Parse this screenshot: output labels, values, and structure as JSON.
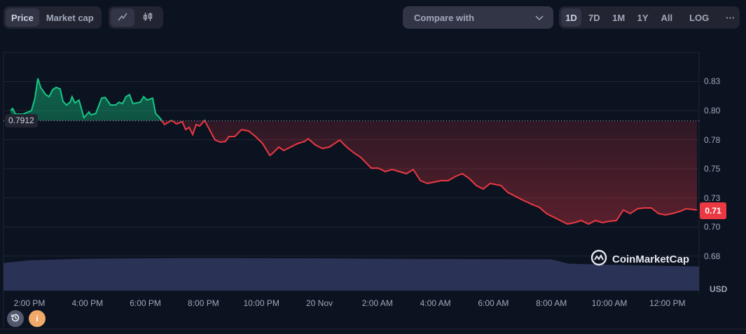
{
  "toolbar": {
    "type_tabs": [
      {
        "label": "Price",
        "active": true
      },
      {
        "label": "Market cap",
        "active": false
      }
    ],
    "chart_styles": [
      {
        "icon": "line-chart-icon",
        "active": true
      },
      {
        "icon": "candlestick-icon",
        "active": false
      }
    ],
    "compare_label": "Compare with",
    "ranges": [
      {
        "label": "1D",
        "active": true
      },
      {
        "label": "7D"
      },
      {
        "label": "1M"
      },
      {
        "label": "1Y"
      },
      {
        "label": "All"
      }
    ],
    "log_label": "LOG",
    "more_label": "···"
  },
  "chart": {
    "y_ticks": [
      {
        "v": 0.825,
        "label": "0.83"
      },
      {
        "v": 0.8,
        "label": "0.80"
      },
      {
        "v": 0.775,
        "label": "0.78"
      },
      {
        "v": 0.75,
        "label": "0.75"
      },
      {
        "v": 0.725,
        "label": "0.73"
      },
      {
        "v": 0.7,
        "label": "0.70"
      },
      {
        "v": 0.675,
        "label": "0.68"
      }
    ],
    "x_ticks": [
      {
        "h": 0,
        "label": "2:00 PM"
      },
      {
        "h": 2,
        "label": "4:00 PM"
      },
      {
        "h": 4,
        "label": "6:00 PM"
      },
      {
        "h": 6,
        "label": "8:00 PM"
      },
      {
        "h": 8,
        "label": "10:00 PM"
      },
      {
        "h": 10,
        "label": "20 Nov"
      },
      {
        "h": 12,
        "label": "2:00 AM"
      },
      {
        "h": 14,
        "label": "4:00 AM"
      },
      {
        "h": 16,
        "label": "6:00 AM"
      },
      {
        "h": 18,
        "label": "8:00 AM"
      },
      {
        "h": 20,
        "label": "10:00 AM"
      },
      {
        "h": 22,
        "label": "12:00 PM"
      }
    ],
    "baseline": 0.7912,
    "baseline_label": "0.7912",
    "current_label": "0.71",
    "currency": "USD",
    "watermark": "CoinMarketCap",
    "colors": {
      "up": "#16c784",
      "down": "#ea3943",
      "volume": "#2a3356"
    },
    "series": [
      [
        -0.65,
        0.8
      ],
      [
        -0.58,
        0.8018
      ],
      [
        -0.48,
        0.797
      ],
      [
        -0.22,
        0.797
      ],
      [
        -0.05,
        0.7988
      ],
      [
        0.07,
        0.8
      ],
      [
        0.19,
        0.8108
      ],
      [
        0.29,
        0.8277
      ],
      [
        0.39,
        0.8199
      ],
      [
        0.56,
        0.8138
      ],
      [
        0.68,
        0.812
      ],
      [
        0.8,
        0.818
      ],
      [
        0.92,
        0.8199
      ],
      [
        1.06,
        0.8187
      ],
      [
        1.16,
        0.8078
      ],
      [
        1.28,
        0.8048
      ],
      [
        1.4,
        0.8072
      ],
      [
        1.47,
        0.812
      ],
      [
        1.57,
        0.8066
      ],
      [
        1.71,
        0.809
      ],
      [
        1.88,
        0.794
      ],
      [
        2.05,
        0.7988
      ],
      [
        2.13,
        0.7964
      ],
      [
        2.29,
        0.7976
      ],
      [
        2.49,
        0.8108
      ],
      [
        2.61,
        0.8114
      ],
      [
        2.8,
        0.8048
      ],
      [
        2.97,
        0.8048
      ],
      [
        3.09,
        0.8072
      ],
      [
        3.21,
        0.806
      ],
      [
        3.33,
        0.812
      ],
      [
        3.45,
        0.8138
      ],
      [
        3.57,
        0.806
      ],
      [
        3.82,
        0.8072
      ],
      [
        3.94,
        0.812
      ],
      [
        4.06,
        0.809
      ],
      [
        4.25,
        0.8108
      ],
      [
        4.35,
        0.7976
      ],
      [
        4.49,
        0.794
      ],
      [
        4.66,
        0.788
      ],
      [
        4.78,
        0.7898
      ],
      [
        4.9,
        0.7916
      ],
      [
        5.07,
        0.7886
      ],
      [
        5.27,
        0.7904
      ],
      [
        5.39,
        0.7837
      ],
      [
        5.51,
        0.7856
      ],
      [
        5.63,
        0.7795
      ],
      [
        5.75,
        0.788
      ],
      [
        5.87,
        0.7868
      ],
      [
        6.04,
        0.7916
      ],
      [
        6.18,
        0.785
      ],
      [
        6.4,
        0.7747
      ],
      [
        6.59,
        0.7729
      ],
      [
        6.76,
        0.7735
      ],
      [
        6.88,
        0.7777
      ],
      [
        7.08,
        0.7777
      ],
      [
        7.32,
        0.7837
      ],
      [
        7.56,
        0.7825
      ],
      [
        7.8,
        0.7777
      ],
      [
        8.04,
        0.7717
      ],
      [
        8.29,
        0.7615
      ],
      [
        8.41,
        0.7639
      ],
      [
        8.6,
        0.7687
      ],
      [
        8.77,
        0.7657
      ],
      [
        9.01,
        0.7687
      ],
      [
        9.25,
        0.7717
      ],
      [
        9.49,
        0.7735
      ],
      [
        9.61,
        0.7759
      ],
      [
        9.86,
        0.7705
      ],
      [
        10.1,
        0.7675
      ],
      [
        10.34,
        0.7687
      ],
      [
        10.7,
        0.7747
      ],
      [
        10.94,
        0.7687
      ],
      [
        11.18,
        0.7639
      ],
      [
        11.43,
        0.7597
      ],
      [
        11.67,
        0.7536
      ],
      [
        11.79,
        0.7506
      ],
      [
        12.03,
        0.7506
      ],
      [
        12.27,
        0.7476
      ],
      [
        12.51,
        0.7494
      ],
      [
        12.75,
        0.7476
      ],
      [
        13.0,
        0.7458
      ],
      [
        13.24,
        0.7494
      ],
      [
        13.48,
        0.7398
      ],
      [
        13.72,
        0.7374
      ],
      [
        13.96,
        0.7386
      ],
      [
        14.2,
        0.7398
      ],
      [
        14.44,
        0.7398
      ],
      [
        14.69,
        0.7434
      ],
      [
        14.93,
        0.7458
      ],
      [
        15.17,
        0.7416
      ],
      [
        15.41,
        0.7356
      ],
      [
        15.65,
        0.7326
      ],
      [
        15.89,
        0.7374
      ],
      [
        16.26,
        0.7356
      ],
      [
        16.5,
        0.7296
      ],
      [
        16.74,
        0.7266
      ],
      [
        16.98,
        0.7235
      ],
      [
        17.34,
        0.7193
      ],
      [
        17.58,
        0.7169
      ],
      [
        17.83,
        0.7115
      ],
      [
        18.07,
        0.7085
      ],
      [
        18.31,
        0.7055
      ],
      [
        18.55,
        0.7025
      ],
      [
        18.79,
        0.7037
      ],
      [
        19.03,
        0.7055
      ],
      [
        19.28,
        0.7025
      ],
      [
        19.52,
        0.7055
      ],
      [
        19.76,
        0.7037
      ],
      [
        20.0,
        0.7049
      ],
      [
        20.24,
        0.7055
      ],
      [
        20.48,
        0.7145
      ],
      [
        20.72,
        0.7115
      ],
      [
        20.97,
        0.7157
      ],
      [
        21.21,
        0.7163
      ],
      [
        21.45,
        0.7163
      ],
      [
        21.69,
        0.7115
      ],
      [
        21.93,
        0.7103
      ],
      [
        22.17,
        0.7115
      ],
      [
        22.42,
        0.7133
      ],
      [
        22.66,
        0.7157
      ],
      [
        23.02,
        0.7145
      ]
    ],
    "volume": [
      [
        -0.9,
        0.82
      ],
      [
        0,
        0.9
      ],
      [
        2,
        0.95
      ],
      [
        6,
        0.97
      ],
      [
        10,
        0.96
      ],
      [
        14,
        0.94
      ],
      [
        18,
        0.93
      ],
      [
        18.6,
        0.8
      ],
      [
        21,
        0.75
      ],
      [
        23.1,
        0.72
      ]
    ]
  }
}
